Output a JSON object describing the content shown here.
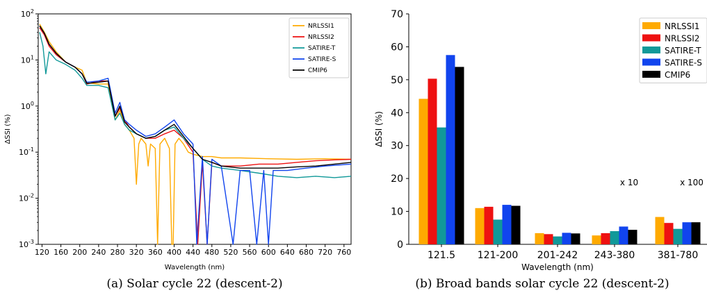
{
  "chart_data": [
    {
      "type": "line",
      "caption": "(a) Solar cycle 22 (descent-2)",
      "xlabel": "Wavelength (nm)",
      "ylabel": "ΔSSI (%)",
      "xlim": [
        112,
        775
      ],
      "ylim": [
        0.001,
        100
      ],
      "yscale": "log",
      "grid": false,
      "legend_position": "top-right",
      "x_ticks": [
        "120",
        "160",
        "200",
        "240",
        "280",
        "320",
        "360",
        "400",
        "440",
        "480",
        "520",
        "560",
        "600",
        "640",
        "680",
        "720",
        "760"
      ],
      "y_ticks": [
        "10^-3",
        "10^-2",
        "10^-1",
        "10^0",
        "10^1",
        "10^2"
      ],
      "series": [
        {
          "name": "NRLSSI1",
          "color": "#ffaa00",
          "points": [
            [
              115,
              60
            ],
            [
              125,
              40
            ],
            [
              135,
              25
            ],
            [
              150,
              15
            ],
            [
              170,
              9
            ],
            [
              190,
              7
            ],
            [
              205,
              6
            ],
            [
              215,
              3.2
            ],
            [
              240,
              3.0
            ],
            [
              260,
              3.0
            ],
            [
              275,
              0.5
            ],
            [
              285,
              0.8
            ],
            [
              295,
              0.4
            ],
            [
              305,
              0.3
            ],
            [
              315,
              0.2
            ],
            [
              320,
              0.02
            ],
            [
              325,
              0.15
            ],
            [
              330,
              0.2
            ],
            [
              340,
              0.15
            ],
            [
              345,
              0.05
            ],
            [
              350,
              0.15
            ],
            [
              360,
              0.12
            ],
            [
              365,
              0.001
            ],
            [
              370,
              0.15
            ],
            [
              380,
              0.2
            ],
            [
              390,
              0.12
            ],
            [
              395,
              0.001
            ],
            [
              398,
              0.001
            ],
            [
              402,
              0.15
            ],
            [
              410,
              0.2
            ],
            [
              420,
              0.15
            ],
            [
              430,
              0.1
            ],
            [
              440,
              0.09
            ],
            [
              460,
              0.08
            ],
            [
              480,
              0.08
            ],
            [
              500,
              0.075
            ],
            [
              540,
              0.075
            ],
            [
              600,
              0.072
            ],
            [
              660,
              0.07
            ],
            [
              720,
              0.072
            ],
            [
              775,
              0.07
            ]
          ]
        },
        {
          "name": "NRLSSI2",
          "color": "#ee1111",
          "points": [
            [
              115,
              50
            ],
            [
              125,
              35
            ],
            [
              135,
              20
            ],
            [
              150,
              13
            ],
            [
              170,
              9
            ],
            [
              190,
              7
            ],
            [
              205,
              5
            ],
            [
              215,
              3.0
            ],
            [
              240,
              3.5
            ],
            [
              260,
              3.5
            ],
            [
              275,
              0.6
            ],
            [
              285,
              0.9
            ],
            [
              295,
              0.5
            ],
            [
              305,
              0.35
            ],
            [
              320,
              0.25
            ],
            [
              340,
              0.2
            ],
            [
              360,
              0.2
            ],
            [
              380,
              0.25
            ],
            [
              400,
              0.3
            ],
            [
              420,
              0.2
            ],
            [
              440,
              0.1
            ],
            [
              450,
              0.001
            ],
            [
              460,
              0.06
            ],
            [
              470,
              0.001
            ],
            [
              480,
              0.06
            ],
            [
              500,
              0.05
            ],
            [
              540,
              0.05
            ],
            [
              580,
              0.055
            ],
            [
              620,
              0.055
            ],
            [
              660,
              0.06
            ],
            [
              700,
              0.065
            ],
            [
              740,
              0.068
            ],
            [
              775,
              0.07
            ]
          ]
        },
        {
          "name": "SATIRE-T",
          "color": "#119999",
          "points": [
            [
              115,
              40
            ],
            [
              122,
              20
            ],
            [
              128,
              5
            ],
            [
              135,
              15
            ],
            [
              150,
              10
            ],
            [
              170,
              8
            ],
            [
              190,
              6
            ],
            [
              205,
              4
            ],
            [
              215,
              2.8
            ],
            [
              240,
              2.8
            ],
            [
              260,
              2.5
            ],
            [
              275,
              0.5
            ],
            [
              285,
              0.7
            ],
            [
              295,
              0.4
            ],
            [
              305,
              0.3
            ],
            [
              320,
              0.25
            ],
            [
              340,
              0.2
            ],
            [
              360,
              0.22
            ],
            [
              380,
              0.3
            ],
            [
              400,
              0.35
            ],
            [
              420,
              0.2
            ],
            [
              440,
              0.12
            ],
            [
              460,
              0.07
            ],
            [
              480,
              0.05
            ],
            [
              500,
              0.045
            ],
            [
              540,
              0.04
            ],
            [
              580,
              0.035
            ],
            [
              620,
              0.03
            ],
            [
              660,
              0.028
            ],
            [
              700,
              0.03
            ],
            [
              740,
              0.028
            ],
            [
              775,
              0.03
            ]
          ]
        },
        {
          "name": "SATIRE-S",
          "color": "#1144ee",
          "points": [
            [
              115,
              55
            ],
            [
              125,
              38
            ],
            [
              135,
              22
            ],
            [
              150,
              14
            ],
            [
              170,
              9
            ],
            [
              190,
              7
            ],
            [
              205,
              5
            ],
            [
              215,
              3.3
            ],
            [
              240,
              3.5
            ],
            [
              260,
              4
            ],
            [
              275,
              0.7
            ],
            [
              285,
              1.2
            ],
            [
              295,
              0.5
            ],
            [
              305,
              0.4
            ],
            [
              320,
              0.3
            ],
            [
              340,
              0.22
            ],
            [
              360,
              0.25
            ],
            [
              380,
              0.35
            ],
            [
              400,
              0.5
            ],
            [
              420,
              0.25
            ],
            [
              440,
              0.15
            ],
            [
              448,
              0.001
            ],
            [
              460,
              0.08
            ],
            [
              470,
              0.001
            ],
            [
              480,
              0.07
            ],
            [
              500,
              0.05
            ],
            [
              525,
              0.001
            ],
            [
              540,
              0.04
            ],
            [
              560,
              0.04
            ],
            [
              575,
              0.001
            ],
            [
              590,
              0.04
            ],
            [
              600,
              0.001
            ],
            [
              610,
              0.04
            ],
            [
              640,
              0.04
            ],
            [
              680,
              0.045
            ],
            [
              720,
              0.05
            ],
            [
              775,
              0.055
            ]
          ]
        },
        {
          "name": "CMIP6",
          "color": "#000000",
          "points": [
            [
              115,
              55
            ],
            [
              125,
              38
            ],
            [
              135,
              22
            ],
            [
              150,
              14
            ],
            [
              170,
              9
            ],
            [
              190,
              7
            ],
            [
              205,
              5
            ],
            [
              215,
              3.1
            ],
            [
              240,
              3.3
            ],
            [
              260,
              3.5
            ],
            [
              275,
              0.6
            ],
            [
              285,
              1.0
            ],
            [
              295,
              0.45
            ],
            [
              305,
              0.35
            ],
            [
              320,
              0.25
            ],
            [
              340,
              0.2
            ],
            [
              360,
              0.22
            ],
            [
              380,
              0.3
            ],
            [
              400,
              0.4
            ],
            [
              420,
              0.22
            ],
            [
              440,
              0.12
            ],
            [
              460,
              0.07
            ],
            [
              480,
              0.06
            ],
            [
              500,
              0.05
            ],
            [
              540,
              0.045
            ],
            [
              580,
              0.045
            ],
            [
              620,
              0.045
            ],
            [
              660,
              0.048
            ],
            [
              700,
              0.05
            ],
            [
              740,
              0.055
            ],
            [
              775,
              0.06
            ]
          ]
        }
      ]
    },
    {
      "type": "bar",
      "caption": "(b) Broad bands solar cycle 22 (descent-2)",
      "xlabel": "Wavelength (nm)",
      "ylabel": "ΔSSI (%)",
      "ylim": [
        0,
        70
      ],
      "y_ticks": [
        "0",
        "10",
        "20",
        "30",
        "40",
        "50",
        "60",
        "70"
      ],
      "grid": false,
      "legend_position": "top-right",
      "categories": [
        "121.5",
        "121-200",
        "201-242",
        "243-380",
        "381-780"
      ],
      "annotations": [
        "x 10",
        "x 100"
      ],
      "series": [
        {
          "name": "NRLSSI1",
          "color": "#ffaa00",
          "values": [
            44.2,
            11.0,
            3.4,
            2.7,
            8.3
          ]
        },
        {
          "name": "NRLSSI2",
          "color": "#ee1111",
          "values": [
            50.3,
            11.4,
            3.1,
            3.4,
            6.5
          ]
        },
        {
          "name": "SATIRE-T",
          "color": "#119999",
          "values": [
            35.5,
            7.5,
            2.4,
            4.0,
            4.7
          ]
        },
        {
          "name": "SATIRE-S",
          "color": "#1144ee",
          "values": [
            57.5,
            12.0,
            3.5,
            5.4,
            6.7
          ]
        },
        {
          "name": "CMIP6",
          "color": "#000000",
          "values": [
            53.9,
            11.7,
            3.3,
            4.4,
            6.7
          ]
        }
      ]
    }
  ]
}
